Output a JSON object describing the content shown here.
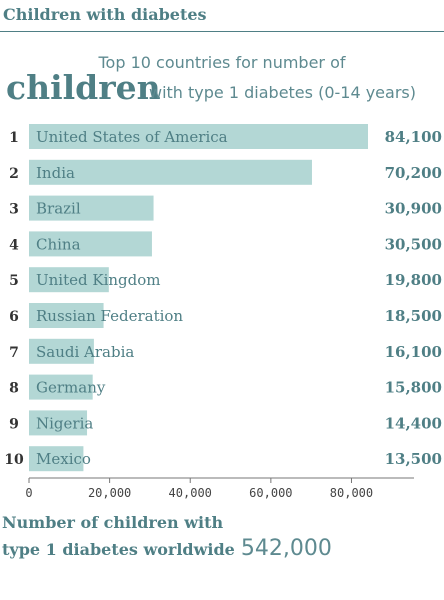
{
  "header": {
    "title": "Children with diabetes"
  },
  "headline": {
    "line1": "Top 10 countries for number of",
    "emphasis": "children",
    "line2": "with type 1 diabetes (0-14 years)"
  },
  "footer": {
    "line1": "Number of children with",
    "line2": "type 1 diabetes worldwide",
    "value": "542,000"
  },
  "colors": {
    "bar": "#b3d7d5",
    "text": "#4f7f85",
    "axis": "#777777"
  },
  "chart_data": {
    "type": "bar",
    "orientation": "horizontal",
    "ranks": [
      "1",
      "2",
      "3",
      "4",
      "5",
      "6",
      "7",
      "8",
      "9",
      "10"
    ],
    "categories": [
      "United States of America",
      "India",
      "Brazil",
      "China",
      "United Kingdom",
      "Russian Federation",
      "Saudi Arabia",
      "Germany",
      "Nigeria",
      "Mexico"
    ],
    "values": [
      84100,
      70200,
      30900,
      30500,
      19800,
      18500,
      16100,
      15800,
      14400,
      13500
    ],
    "value_labels": [
      "84,100",
      "70,200",
      "30,900",
      "30,500",
      "19,800",
      "18,500",
      "16,100",
      "15,800",
      "14,400",
      "13,500"
    ],
    "xlim": [
      0,
      85000
    ],
    "xticks": [
      0,
      20000,
      40000,
      60000,
      80000
    ],
    "xtick_labels": [
      "0",
      "20,000",
      "40,000",
      "60,000",
      "80,000"
    ],
    "grid": false,
    "legend": "none"
  }
}
